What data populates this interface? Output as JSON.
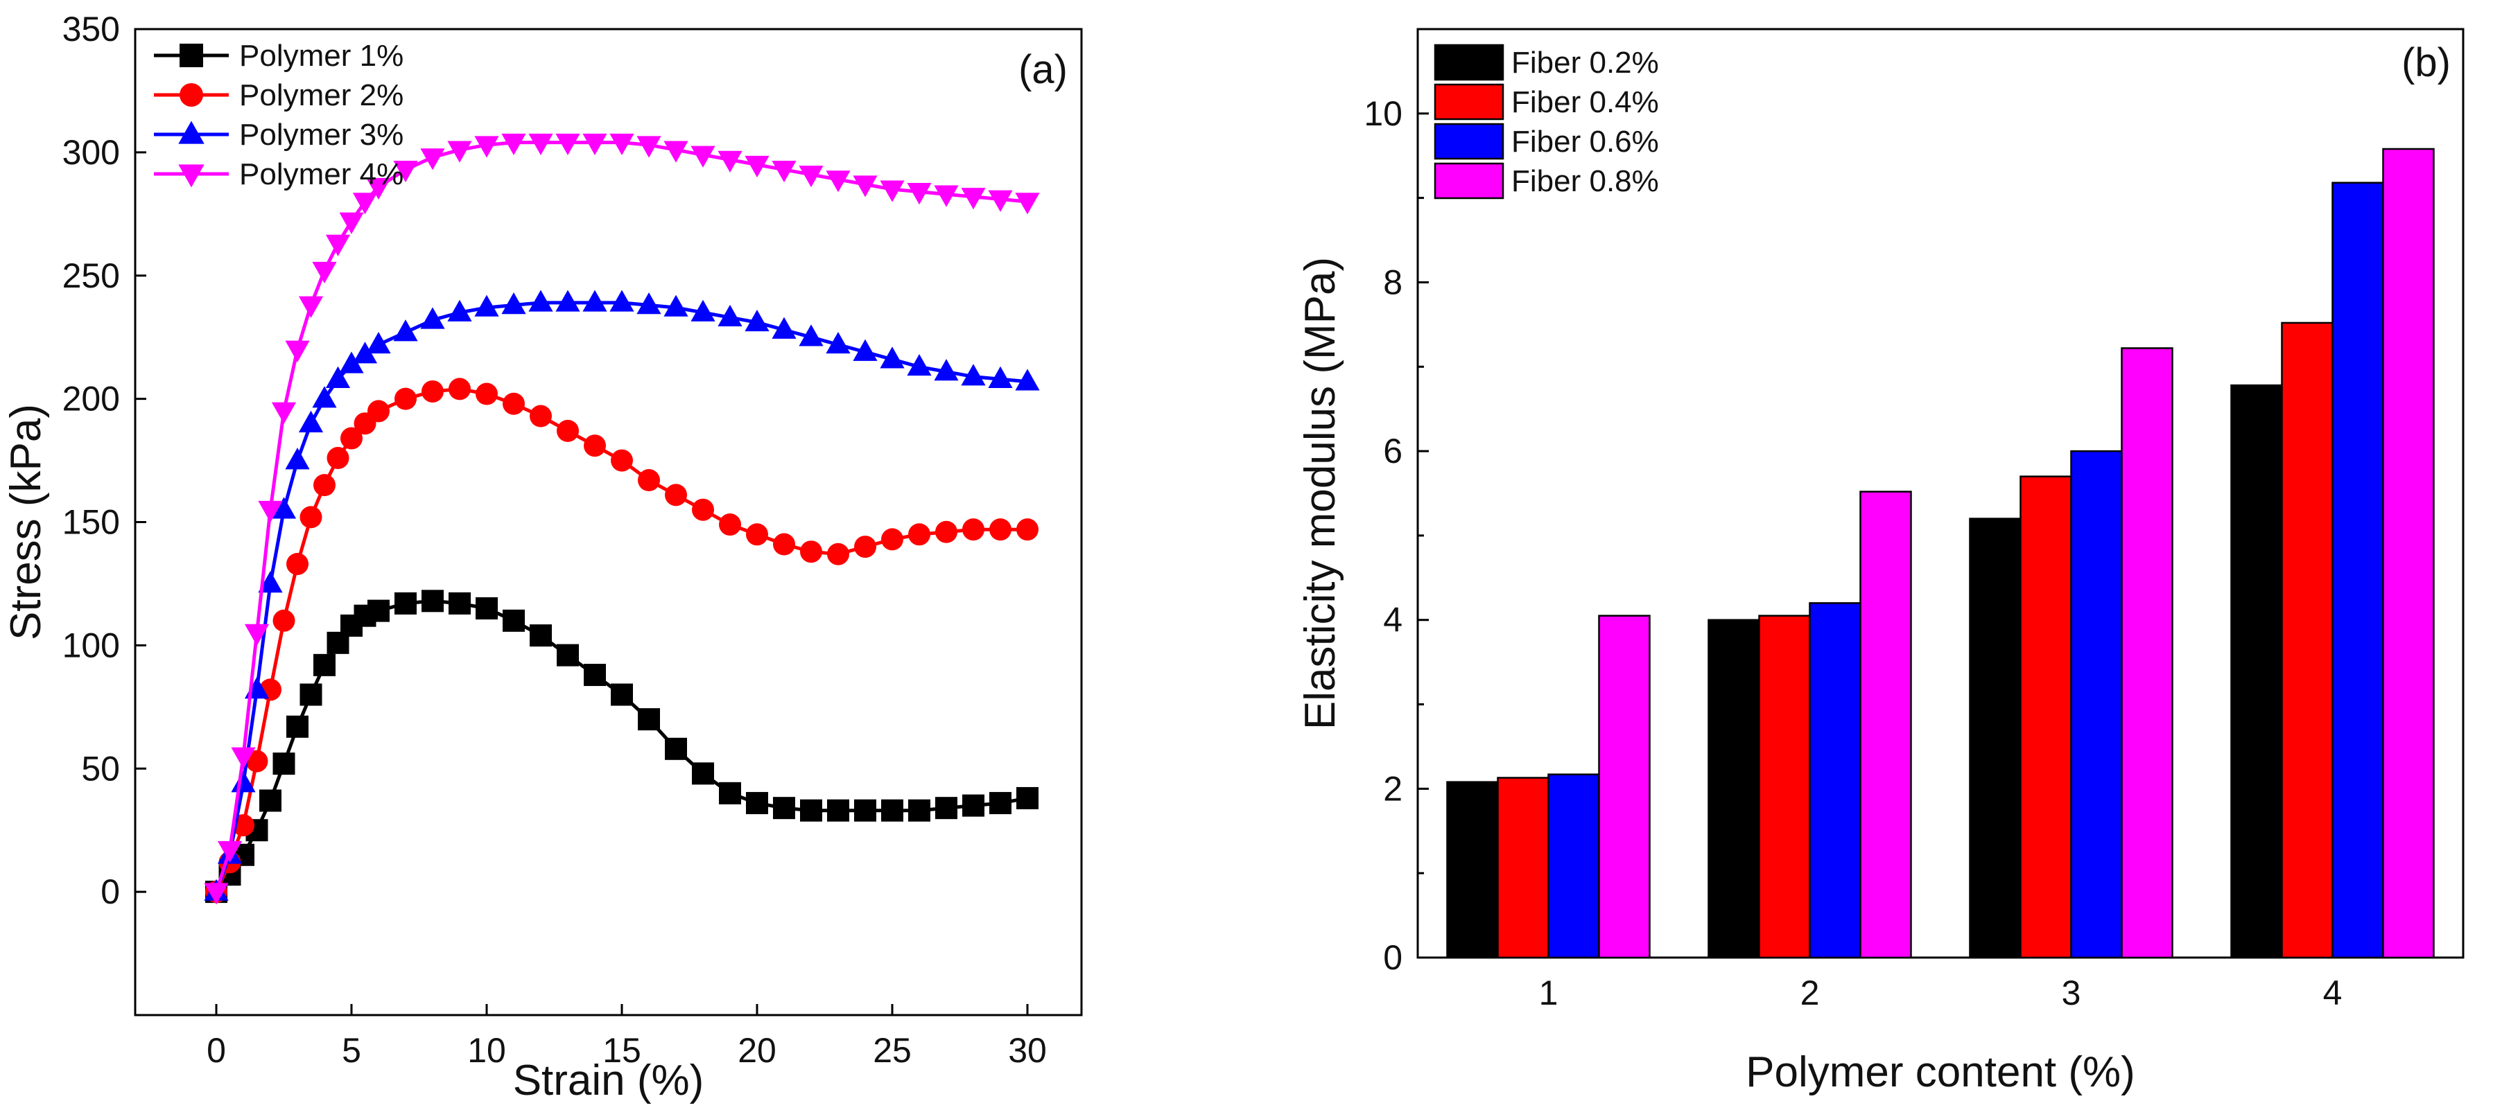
{
  "chart_data": [
    {
      "type": "line",
      "panel_label": "(a)",
      "xlabel": "Strain (%)",
      "ylabel": "Stress (kPa)",
      "xlim": [
        -3,
        32
      ],
      "ylim": [
        -50,
        350
      ],
      "xticks": [
        0,
        5,
        10,
        15,
        20,
        25,
        30
      ],
      "yticks": [
        0,
        50,
        100,
        150,
        200,
        250,
        300,
        350
      ],
      "legend_position": "top-left",
      "series": [
        {
          "name": "Polymer 1%",
          "color": "#000000",
          "marker": "square",
          "points": [
            [
              0,
              0
            ],
            [
              0.5,
              7
            ],
            [
              1,
              15
            ],
            [
              1.5,
              25
            ],
            [
              2,
              37
            ],
            [
              2.5,
              52
            ],
            [
              3,
              67
            ],
            [
              3.5,
              80
            ],
            [
              4,
              92
            ],
            [
              4.5,
              101
            ],
            [
              5,
              108
            ],
            [
              5.5,
              112
            ],
            [
              6,
              114
            ],
            [
              7,
              117
            ],
            [
              8,
              118
            ],
            [
              9,
              117
            ],
            [
              10,
              115
            ],
            [
              11,
              110
            ],
            [
              12,
              104
            ],
            [
              13,
              96
            ],
            [
              14,
              88
            ],
            [
              15,
              80
            ],
            [
              16,
              70
            ],
            [
              17,
              58
            ],
            [
              18,
              48
            ],
            [
              19,
              40
            ],
            [
              20,
              36
            ],
            [
              21,
              34
            ],
            [
              22,
              33
            ],
            [
              23,
              33
            ],
            [
              24,
              33
            ],
            [
              25,
              33
            ],
            [
              26,
              33
            ],
            [
              27,
              34
            ],
            [
              28,
              35
            ],
            [
              29,
              36
            ],
            [
              30,
              38
            ]
          ]
        },
        {
          "name": "Polymer 2%",
          "color": "#ff0000",
          "marker": "circle",
          "points": [
            [
              0,
              0
            ],
            [
              0.5,
              12
            ],
            [
              1,
              27
            ],
            [
              1.5,
              53
            ],
            [
              2,
              82
            ],
            [
              2.5,
              110
            ],
            [
              3,
              133
            ],
            [
              3.5,
              152
            ],
            [
              4,
              165
            ],
            [
              4.5,
              176
            ],
            [
              5,
              184
            ],
            [
              5.5,
              190
            ],
            [
              6,
              195
            ],
            [
              7,
              200
            ],
            [
              8,
              203
            ],
            [
              9,
              204
            ],
            [
              10,
              202
            ],
            [
              11,
              198
            ],
            [
              12,
              193
            ],
            [
              13,
              187
            ],
            [
              14,
              181
            ],
            [
              15,
              175
            ],
            [
              16,
              167
            ],
            [
              17,
              161
            ],
            [
              18,
              155
            ],
            [
              19,
              149
            ],
            [
              20,
              145
            ],
            [
              21,
              141
            ],
            [
              22,
              138
            ],
            [
              23,
              137
            ],
            [
              24,
              140
            ],
            [
              25,
              143
            ],
            [
              26,
              145
            ],
            [
              27,
              146
            ],
            [
              28,
              147
            ],
            [
              29,
              147
            ],
            [
              30,
              147
            ]
          ]
        },
        {
          "name": "Polymer 3%",
          "color": "#0000ff",
          "marker": "triangle-up",
          "points": [
            [
              0,
              0
            ],
            [
              0.5,
              15
            ],
            [
              1,
              44
            ],
            [
              1.5,
              82
            ],
            [
              2,
              125
            ],
            [
              2.5,
              155
            ],
            [
              3,
              175
            ],
            [
              3.5,
              190
            ],
            [
              4,
              200
            ],
            [
              4.5,
              208
            ],
            [
              5,
              214
            ],
            [
              5.5,
              218
            ],
            [
              6,
              222
            ],
            [
              7,
              227
            ],
            [
              8,
              232
            ],
            [
              9,
              235
            ],
            [
              10,
              237
            ],
            [
              11,
              238
            ],
            [
              12,
              239
            ],
            [
              13,
              239
            ],
            [
              14,
              239
            ],
            [
              15,
              239
            ],
            [
              16,
              238
            ],
            [
              17,
              237
            ],
            [
              18,
              235
            ],
            [
              19,
              233
            ],
            [
              20,
              231
            ],
            [
              21,
              228
            ],
            [
              22,
              225
            ],
            [
              23,
              222
            ],
            [
              24,
              219
            ],
            [
              25,
              216
            ],
            [
              26,
              213
            ],
            [
              27,
              211
            ],
            [
              28,
              209
            ],
            [
              29,
              208
            ],
            [
              30,
              207
            ]
          ]
        },
        {
          "name": "Polymer 4%",
          "color": "#ff00ff",
          "marker": "triangle-down",
          "points": [
            [
              0,
              0
            ],
            [
              0.5,
              17
            ],
            [
              1,
              55
            ],
            [
              1.5,
              105
            ],
            [
              2,
              155
            ],
            [
              2.5,
              195
            ],
            [
              3,
              220
            ],
            [
              3.5,
              238
            ],
            [
              4,
              252
            ],
            [
              4.5,
              263
            ],
            [
              5,
              272
            ],
            [
              5.5,
              280
            ],
            [
              6,
              286
            ],
            [
              7,
              293
            ],
            [
              8,
              298
            ],
            [
              9,
              301
            ],
            [
              10,
              303
            ],
            [
              11,
              304
            ],
            [
              12,
              304
            ],
            [
              13,
              304
            ],
            [
              14,
              304
            ],
            [
              15,
              304
            ],
            [
              16,
              303
            ],
            [
              17,
              301
            ],
            [
              18,
              299
            ],
            [
              19,
              297
            ],
            [
              20,
              295
            ],
            [
              21,
              293
            ],
            [
              22,
              291
            ],
            [
              23,
              289
            ],
            [
              24,
              287
            ],
            [
              25,
              285
            ],
            [
              26,
              284
            ],
            [
              27,
              283
            ],
            [
              28,
              282
            ],
            [
              29,
              281
            ],
            [
              30,
              280
            ]
          ]
        }
      ]
    },
    {
      "type": "bar",
      "panel_label": "(b)",
      "xlabel": "Polymer content (%)",
      "ylabel": "Elasticity modulus (MPa)",
      "ylim": [
        0,
        11
      ],
      "yticks": [
        0,
        2,
        4,
        6,
        8,
        10
      ],
      "categories": [
        "1",
        "2",
        "3",
        "4"
      ],
      "legend_position": "top-left",
      "series": [
        {
          "name": "Fiber 0.2%",
          "color": "#000000",
          "values": [
            2.08,
            4.0,
            5.2,
            6.78
          ]
        },
        {
          "name": "Fiber 0.4%",
          "color": "#ff0000",
          "values": [
            2.13,
            4.05,
            5.7,
            7.52
          ]
        },
        {
          "name": "Fiber 0.6%",
          "color": "#0000ff",
          "values": [
            2.17,
            4.2,
            6.0,
            9.18
          ]
        },
        {
          "name": "Fiber 0.8%",
          "color": "#ff00ff",
          "values": [
            4.05,
            5.52,
            7.22,
            9.58
          ]
        }
      ]
    }
  ]
}
